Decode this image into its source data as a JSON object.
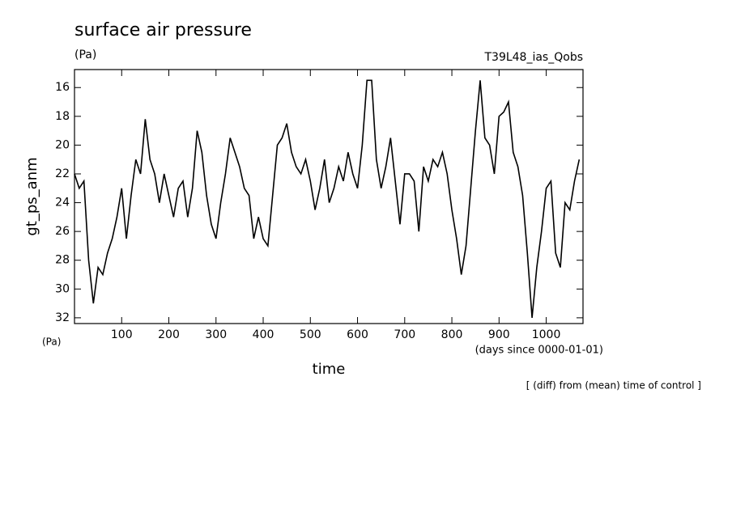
{
  "chart_data": {
    "type": "line",
    "title": "surface air pressure",
    "subtitle": "(Pa)",
    "run_label": "T39L48_ias_Qobs",
    "ylabel": "gt_ps_anm",
    "yunit": "(Pa)",
    "xlabel": "time",
    "xunit": "(days since 0000-01-01)",
    "annotation": "[ (diff) from (mean) time of control ]",
    "x": [
      0,
      10,
      20,
      30,
      40,
      50,
      60,
      70,
      80,
      90,
      100,
      110,
      120,
      130,
      140,
      150,
      160,
      170,
      180,
      190,
      200,
      210,
      220,
      230,
      240,
      250,
      260,
      270,
      280,
      290,
      300,
      310,
      320,
      330,
      340,
      350,
      360,
      370,
      380,
      390,
      400,
      410,
      420,
      430,
      440,
      450,
      460,
      470,
      480,
      490,
      500,
      510,
      520,
      530,
      540,
      550,
      560,
      570,
      580,
      590,
      600,
      610,
      620,
      630,
      640,
      650,
      660,
      670,
      680,
      690,
      700,
      710,
      720,
      730,
      740,
      750,
      760,
      770,
      780,
      790,
      800,
      810,
      820,
      830,
      840,
      850,
      860,
      870,
      880,
      890,
      900,
      910,
      920,
      930,
      940,
      950,
      960,
      970,
      980,
      990,
      1000,
      1010,
      1020,
      1030,
      1040,
      1050,
      1060,
      1070
    ],
    "values": [
      22,
      23,
      22.5,
      28,
      31,
      28.5,
      29,
      27.5,
      26.5,
      25,
      23,
      26.5,
      23.5,
      21,
      22,
      18.2,
      21,
      22,
      24,
      22,
      23.5,
      25,
      23,
      22.5,
      25,
      23,
      19,
      20.5,
      23.5,
      25.5,
      26.5,
      24,
      22,
      19.5,
      20.5,
      21.5,
      23,
      23.5,
      26.5,
      25,
      26.5,
      27,
      23.5,
      20,
      19.5,
      18.5,
      20.5,
      21.5,
      22,
      21,
      22.5,
      24.5,
      23,
      21,
      24,
      23,
      21.5,
      22.5,
      20.5,
      22,
      23,
      20,
      15.5,
      15.5,
      21,
      23,
      21.5,
      19.5,
      22.5,
      25.5,
      22,
      22,
      22.5,
      26,
      21.5,
      22.5,
      21,
      21.5,
      20.5,
      22,
      24.5,
      26.5,
      29,
      27,
      23,
      19,
      15.5,
      19.5,
      20,
      22,
      18,
      17.7,
      17,
      20.5,
      21.5,
      23.5,
      27.5,
      32,
      28.5,
      26,
      23,
      22.5,
      27.5,
      28.5,
      24,
      24.5,
      22.5,
      21
    ],
    "color": "#000000",
    "xlim": [
      0,
      1078
    ],
    "xticks": [
      100,
      200,
      300,
      400,
      500,
      600,
      700,
      800,
      900,
      1000
    ],
    "ylim": [
      14.75,
      32.4
    ],
    "yticks": [
      16,
      18,
      20,
      22,
      24,
      26,
      28,
      30,
      32
    ],
    "y_reversed": true,
    "grid": false
  }
}
